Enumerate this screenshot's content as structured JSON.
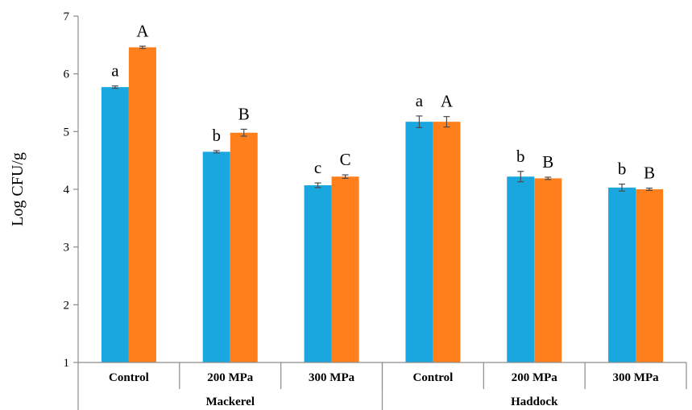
{
  "chart_data": {
    "type": "bar",
    "ylabel": "Log CFU/g",
    "ylim": [
      1,
      7
    ],
    "yticks": [
      "1",
      "2",
      "3",
      "4",
      "5",
      "6",
      "7"
    ],
    "grid": false,
    "legend": "none",
    "groups": [
      {
        "name": "Mackerel",
        "categories": [
          "Control",
          "200 MPa",
          "300 MPa"
        ]
      },
      {
        "name": "Haddock",
        "categories": [
          "Control",
          "200 MPa",
          "300 MPa"
        ]
      }
    ],
    "categories": [
      "Control",
      "200 MPa",
      "300 MPa",
      "Control",
      "200 MPa",
      "300 MPa"
    ],
    "series": [
      {
        "color": "#1aa7df",
        "values": [
          5.77,
          4.65,
          4.07,
          5.17,
          4.22,
          4.03
        ],
        "errors": [
          0.02,
          0.02,
          0.04,
          0.1,
          0.09,
          0.06
        ],
        "sig_labels": [
          "a",
          "b",
          "c",
          "a",
          "b",
          "b"
        ]
      },
      {
        "color": "#ff7f1c",
        "values": [
          6.46,
          4.98,
          4.22,
          5.17,
          4.19,
          4.0
        ],
        "errors": [
          0.02,
          0.06,
          0.03,
          0.09,
          0.02,
          0.02
        ],
        "sig_labels": [
          "A",
          "B",
          "C",
          "A",
          "B",
          "B"
        ]
      }
    ]
  }
}
